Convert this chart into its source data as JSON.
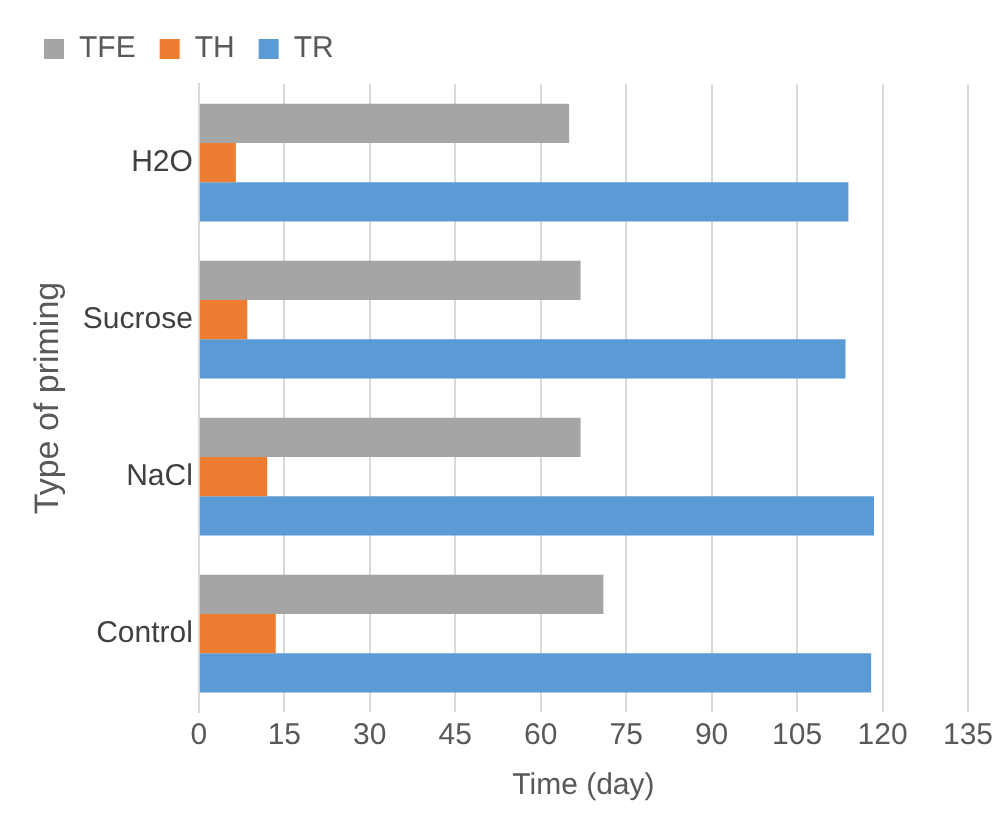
{
  "chart_data": {
    "type": "bar",
    "orientation": "horizontal",
    "xlabel": "Time (day)",
    "ylabel": "Type of priming",
    "categories": [
      "H2O",
      "Sucrose",
      "NaCl",
      "Control"
    ],
    "series": [
      {
        "name": "TFE",
        "color": "#a5a5a5",
        "values": [
          65,
          67,
          67,
          71
        ]
      },
      {
        "name": "TH",
        "color": "#ed7d31",
        "values": [
          6.5,
          8.5,
          12,
          13.5
        ]
      },
      {
        "name": "TR",
        "color": "#5b9bd5",
        "values": [
          114,
          113.5,
          118.5,
          118
        ]
      }
    ],
    "xlim": [
      0,
      135
    ],
    "xticks": [
      0,
      15,
      30,
      45,
      60,
      75,
      90,
      105,
      120,
      135
    ],
    "grid": "x",
    "legend": "top"
  }
}
